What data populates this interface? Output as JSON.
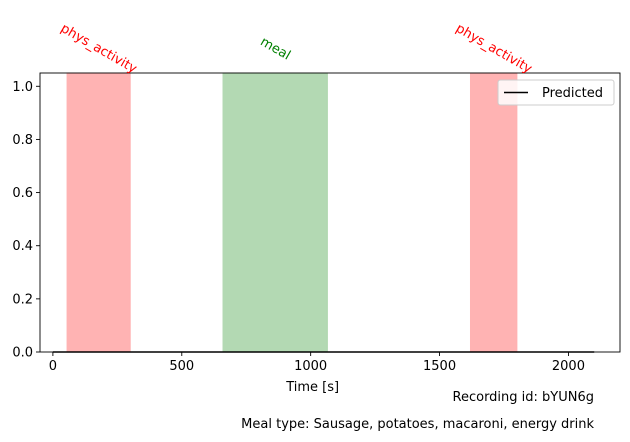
{
  "chart_data": {
    "type": "line",
    "title": "",
    "xlabel": "Time [s]",
    "ylabel": "",
    "xlim": [
      -50,
      2200
    ],
    "ylim": [
      0,
      1.05
    ],
    "x_ticks": [
      0,
      500,
      1000,
      1500,
      2000
    ],
    "y_ticks": [
      0.0,
      0.2,
      0.4,
      0.6,
      0.8,
      1.0
    ],
    "x_tick_labels": [
      "0",
      "500",
      "1000",
      "1500",
      "2000"
    ],
    "y_tick_labels": [
      "0.0",
      "0.2",
      "0.4",
      "0.6",
      "0.8",
      "1.0"
    ],
    "grid": false,
    "legend_position": "top-right",
    "series": [
      {
        "name": "Predicted",
        "color": "#000000",
        "x": [
          0,
          2100
        ],
        "y": [
          0,
          0
        ]
      }
    ],
    "spans": [
      {
        "label": "phys_activity",
        "start": 55,
        "end": 300,
        "color": "#ff0000",
        "fill": "#ffb3b3"
      },
      {
        "label": "meal",
        "start": 660,
        "end": 1065,
        "color": "#008000",
        "fill": "#b3d9b3"
      },
      {
        "label": "phys_activity",
        "start": 1620,
        "end": 1800,
        "color": "#ff0000",
        "fill": "#ffb3b3"
      }
    ]
  },
  "captions": {
    "recording": "Recording id: bYUN6g",
    "meal_type": "Meal type: Sausage, potatoes, macaroni, energy drink"
  }
}
